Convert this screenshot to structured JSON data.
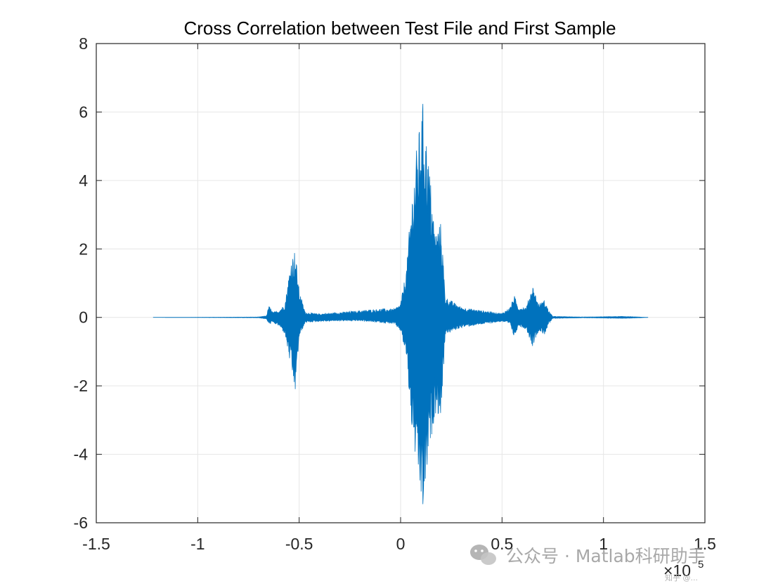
{
  "chart_data": {
    "type": "line",
    "title": "Cross Correlation between Test File and First Sample",
    "xlabel": "",
    "ylabel": "",
    "x_exponent_label": "×10",
    "x_exponent_power": "5",
    "xlim": [
      -1.5,
      1.5
    ],
    "ylim": [
      -6,
      8
    ],
    "xticks": [
      -1.5,
      -1,
      -0.5,
      0,
      0.5,
      1,
      1.5
    ],
    "xtick_labels": [
      "-1.5",
      "-1",
      "-0.5",
      "0",
      "0.5",
      "1",
      "1.5"
    ],
    "yticks": [
      -6,
      -4,
      -2,
      0,
      2,
      4,
      6,
      8
    ],
    "ytick_labels": [
      "-6",
      "-4",
      "-2",
      "0",
      "2",
      "4",
      "6",
      "8"
    ],
    "grid": true,
    "line_color": "#0072BD",
    "x_range": [
      -1.22,
      1.22
    ],
    "envelope": [
      {
        "x": -1.22,
        "upper": 0.0,
        "lower": 0.0
      },
      {
        "x": -0.7,
        "upper": 0.01,
        "lower": -0.01
      },
      {
        "x": -0.66,
        "upper": 0.05,
        "lower": -0.05
      },
      {
        "x": -0.65,
        "upper": 0.35,
        "lower": -0.2
      },
      {
        "x": -0.63,
        "upper": 0.15,
        "lower": -0.15
      },
      {
        "x": -0.6,
        "upper": 0.2,
        "lower": -0.25
      },
      {
        "x": -0.57,
        "upper": 0.4,
        "lower": -0.5
      },
      {
        "x": -0.54,
        "upper": 1.7,
        "lower": -1.5
      },
      {
        "x": -0.52,
        "upper": 2.0,
        "lower": -2.25
      },
      {
        "x": -0.5,
        "upper": 0.8,
        "lower": -0.6
      },
      {
        "x": -0.47,
        "upper": 0.15,
        "lower": -0.15
      },
      {
        "x": -0.4,
        "upper": 0.1,
        "lower": -0.12
      },
      {
        "x": -0.3,
        "upper": 0.15,
        "lower": -0.1
      },
      {
        "x": -0.2,
        "upper": 0.2,
        "lower": -0.1
      },
      {
        "x": -0.1,
        "upper": 0.25,
        "lower": -0.15
      },
      {
        "x": -0.03,
        "upper": 0.25,
        "lower": -0.2
      },
      {
        "x": 0.0,
        "upper": 0.4,
        "lower": -0.4
      },
      {
        "x": 0.03,
        "upper": 1.5,
        "lower": -1.2
      },
      {
        "x": 0.05,
        "upper": 3.2,
        "lower": -3.0
      },
      {
        "x": 0.08,
        "upper": 5.0,
        "lower": -4.5
      },
      {
        "x": 0.11,
        "upper": 6.3,
        "lower": -5.8
      },
      {
        "x": 0.14,
        "upper": 4.5,
        "lower": -4.0
      },
      {
        "x": 0.17,
        "upper": 2.5,
        "lower": -2.8
      },
      {
        "x": 0.2,
        "upper": 2.8,
        "lower": -2.9
      },
      {
        "x": 0.22,
        "upper": 0.6,
        "lower": -0.5
      },
      {
        "x": 0.3,
        "upper": 0.3,
        "lower": -0.3
      },
      {
        "x": 0.4,
        "upper": 0.2,
        "lower": -0.2
      },
      {
        "x": 0.5,
        "upper": 0.12,
        "lower": -0.12
      },
      {
        "x": 0.54,
        "upper": 0.3,
        "lower": -0.2
      },
      {
        "x": 0.56,
        "upper": 0.65,
        "lower": -0.6
      },
      {
        "x": 0.58,
        "upper": 0.3,
        "lower": -0.25
      },
      {
        "x": 0.62,
        "upper": 0.3,
        "lower": -0.35
      },
      {
        "x": 0.65,
        "upper": 0.95,
        "lower": -0.85
      },
      {
        "x": 0.68,
        "upper": 0.4,
        "lower": -0.4
      },
      {
        "x": 0.71,
        "upper": 0.5,
        "lower": -0.5
      },
      {
        "x": 0.73,
        "upper": 0.2,
        "lower": -0.2
      },
      {
        "x": 0.75,
        "upper": 0.03,
        "lower": -0.03
      },
      {
        "x": 0.9,
        "upper": 0.01,
        "lower": -0.01
      },
      {
        "x": 1.1,
        "upper": 0.03,
        "lower": -0.03
      },
      {
        "x": 1.22,
        "upper": 0.0,
        "lower": 0.0
      }
    ]
  },
  "watermark": {
    "text": "公众号 · Matlab科研助手",
    "icon": "wechat-icon",
    "corner_text": "知乎 @..."
  }
}
